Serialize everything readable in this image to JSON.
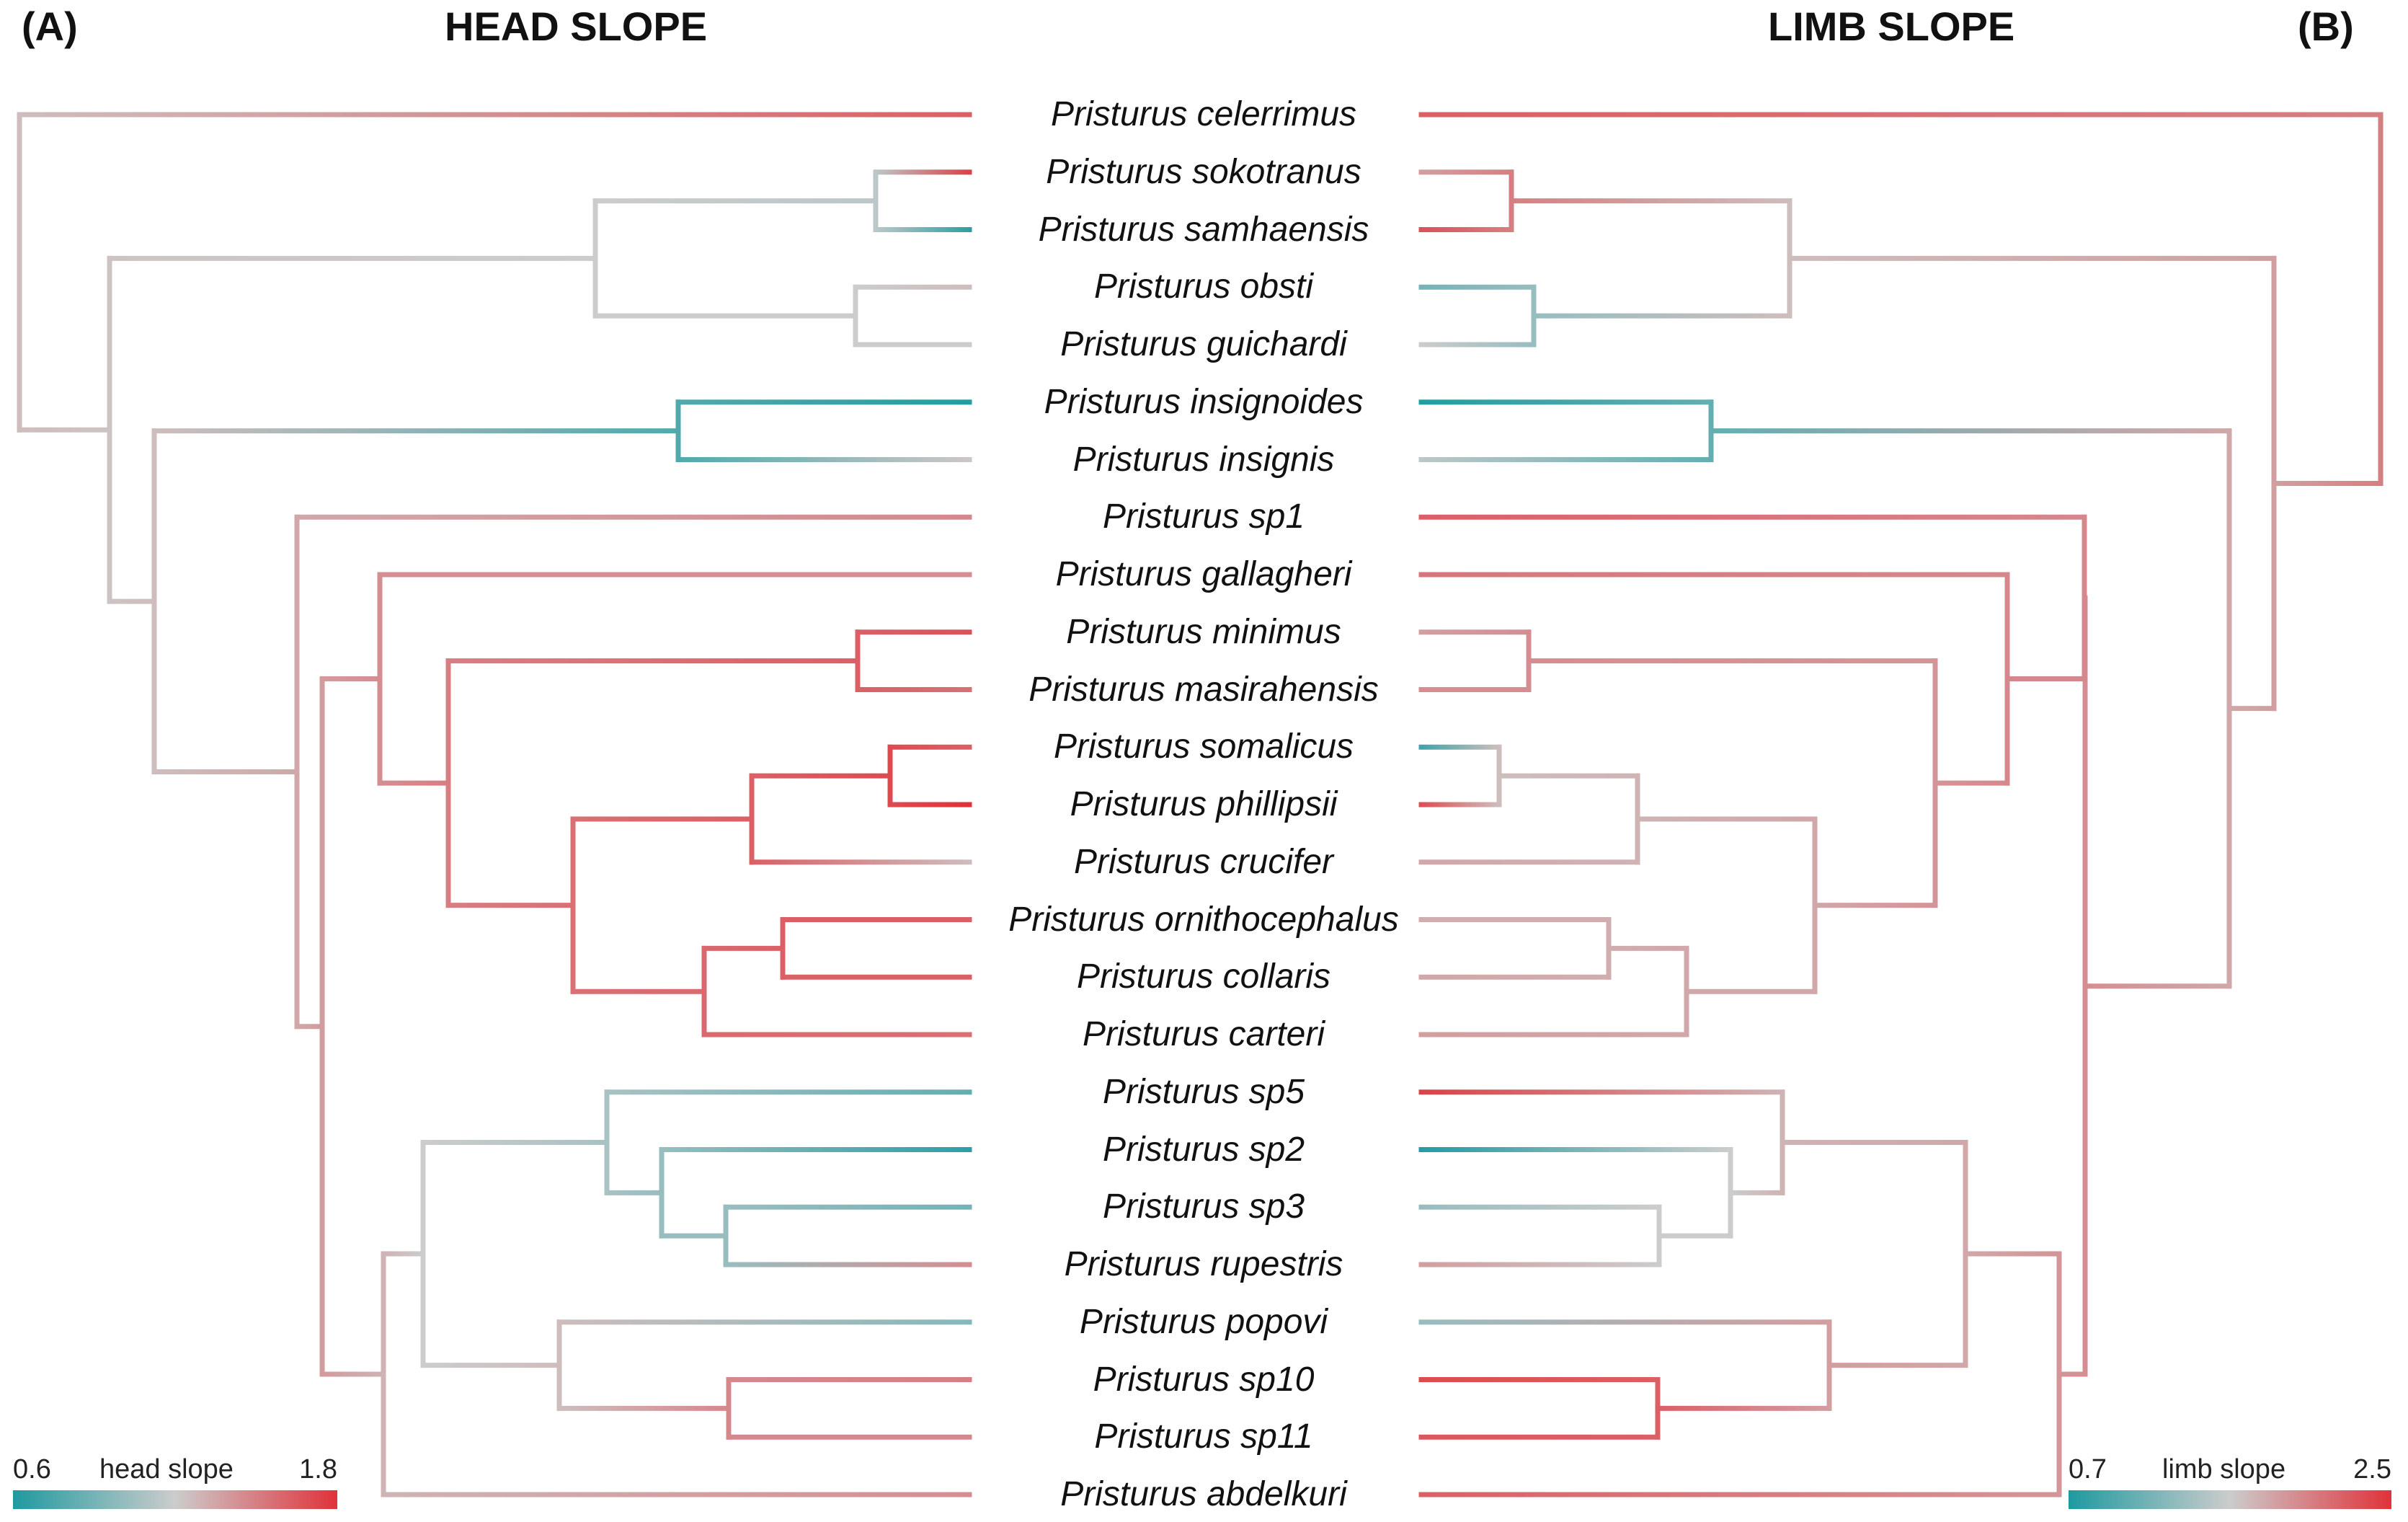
{
  "panels": {
    "left": {
      "letter": "(A)",
      "title": "HEAD SLOPE"
    },
    "right": {
      "letter": "(B)",
      "title": "LIMB SLOPE"
    }
  },
  "colors": {
    "low": "#1e9aa0",
    "mid": "#cccccc",
    "high": "#e0323a"
  },
  "taxa": [
    "Pristurus celerrimus",
    "Pristurus sokotranus",
    "Pristurus samhaensis",
    "Pristurus obsti",
    "Pristurus guichardi",
    "Pristurus insignoides",
    "Pristurus insignis",
    "Pristurus sp1",
    "Pristurus gallagheri",
    "Pristurus minimus",
    "Pristurus masirahensis",
    "Pristurus somalicus",
    "Pristurus phillipsii",
    "Pristurus crucifer",
    "Pristurus ornithocephalus",
    "Pristurus collaris",
    "Pristurus carteri",
    "Pristurus sp5",
    "Pristurus sp2",
    "Pristurus sp3",
    "Pristurus rupestris",
    "Pristurus popovi",
    "Pristurus sp10",
    "Pristurus sp11",
    "Pristurus abdelkuri"
  ],
  "legend_left": {
    "min": "0.6",
    "label": "head slope",
    "max": "1.8"
  },
  "legend_right": {
    "min": "0.7",
    "label": "limb slope",
    "max": "2.5"
  }
}
